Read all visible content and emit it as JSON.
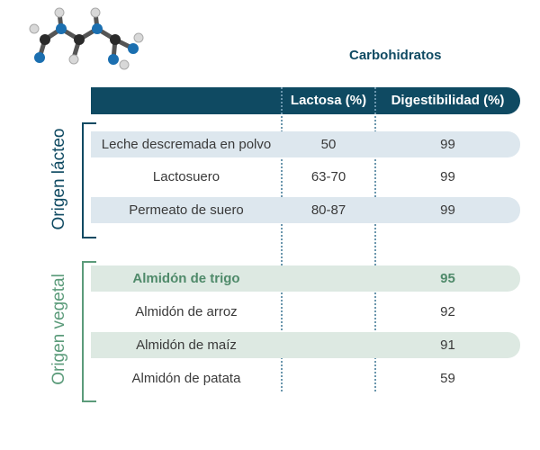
{
  "title": "Carbohidratos",
  "columns": {
    "lactosa": "Lactosa (%)",
    "digestibilidad": "Digestibilidad (%)"
  },
  "groups": {
    "lacteo": {
      "label": "Origen lácteo",
      "rows": [
        {
          "name": "Leche descremada en polvo",
          "lactosa": "50",
          "digestibilidad": "99"
        },
        {
          "name": "Lactosuero",
          "lactosa": "63-70",
          "digestibilidad": "99"
        },
        {
          "name": "Permeato de suero",
          "lactosa": "80-87",
          "digestibilidad": "99"
        }
      ]
    },
    "vegetal": {
      "label": "Origen vegetal",
      "rows": [
        {
          "name": "Almidón de trigo",
          "lactosa": "",
          "digestibilidad": "95"
        },
        {
          "name": "Almidón de arroz",
          "lactosa": "",
          "digestibilidad": "92"
        },
        {
          "name": "Almidón de maíz",
          "lactosa": "",
          "digestibilidad": "91"
        },
        {
          "name": "Almidón de patata",
          "lactosa": "",
          "digestibilidad": "59"
        }
      ]
    }
  },
  "colors": {
    "header": "#0f4a62",
    "lacteo_shade": "#dde7ee",
    "vegetal_shade": "#dde9e2",
    "vegetal_accent": "#5b9b7a",
    "highlight_text": "#4f8a6a"
  },
  "icons": {
    "molecule": "molecule-icon"
  }
}
